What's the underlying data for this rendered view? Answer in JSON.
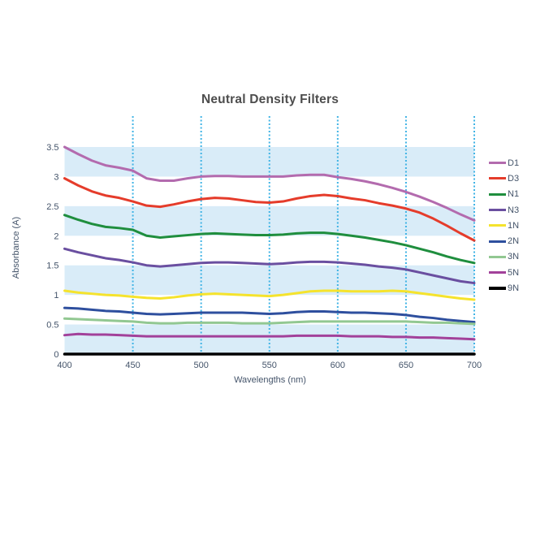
{
  "chart_data": {
    "type": "line",
    "title": "Neutral Density Filters",
    "xlabel": "Wavelengths (nm)",
    "ylabel": "Absorbance (A)",
    "xlim": [
      400,
      700
    ],
    "ylim": [
      0,
      3.5
    ],
    "x_ticks": [
      400,
      450,
      500,
      550,
      600,
      650,
      700
    ],
    "y_tick_labels": [
      "0",
      "0.5",
      "1",
      "1.5",
      "2",
      "2.5",
      "3",
      "3.5"
    ],
    "y_tick_values": [
      0,
      0.5,
      1,
      1.5,
      2,
      2.5,
      3,
      3.5
    ],
    "legend_position": "right",
    "grid": {
      "vertical_gridline_color": "#3fb3e5",
      "vertical_gridline_style": "dotted",
      "band_color": "#d9ecf8",
      "bands": [
        [
          0,
          0.5
        ],
        [
          1,
          1.5
        ],
        [
          2,
          2.5
        ],
        [
          3,
          3.5
        ]
      ]
    },
    "text_color": "#44546a",
    "title_color": "#4d4d4d",
    "x": [
      400,
      410,
      420,
      430,
      440,
      450,
      460,
      470,
      480,
      490,
      500,
      510,
      520,
      530,
      540,
      550,
      560,
      570,
      580,
      590,
      600,
      610,
      620,
      630,
      640,
      650,
      660,
      670,
      680,
      690,
      700
    ],
    "series": [
      {
        "name": "D1",
        "color": "#b36bae",
        "width": 3,
        "values": [
          3.5,
          3.38,
          3.27,
          3.19,
          3.15,
          3.1,
          2.97,
          2.93,
          2.93,
          2.97,
          3.0,
          3.01,
          3.01,
          3.0,
          3.0,
          3.0,
          3.0,
          3.02,
          3.03,
          3.03,
          2.99,
          2.96,
          2.92,
          2.87,
          2.81,
          2.74,
          2.66,
          2.57,
          2.47,
          2.36,
          2.26
        ]
      },
      {
        "name": "D3",
        "color": "#e53c2b",
        "width": 3,
        "values": [
          2.97,
          2.85,
          2.75,
          2.68,
          2.64,
          2.58,
          2.51,
          2.49,
          2.53,
          2.58,
          2.62,
          2.64,
          2.63,
          2.6,
          2.57,
          2.56,
          2.58,
          2.63,
          2.67,
          2.69,
          2.67,
          2.63,
          2.6,
          2.55,
          2.51,
          2.46,
          2.39,
          2.29,
          2.17,
          2.04,
          1.92
        ]
      },
      {
        "name": "N1",
        "color": "#1f8e3e",
        "width": 3,
        "values": [
          2.35,
          2.27,
          2.2,
          2.15,
          2.13,
          2.1,
          2.0,
          1.97,
          1.99,
          2.01,
          2.03,
          2.04,
          2.03,
          2.02,
          2.01,
          2.01,
          2.02,
          2.04,
          2.05,
          2.05,
          2.03,
          2.0,
          1.97,
          1.93,
          1.89,
          1.84,
          1.78,
          1.72,
          1.65,
          1.59,
          1.54
        ]
      },
      {
        "name": "N3",
        "color": "#6a4fa0",
        "width": 3,
        "values": [
          1.78,
          1.72,
          1.67,
          1.62,
          1.59,
          1.55,
          1.5,
          1.48,
          1.5,
          1.52,
          1.54,
          1.55,
          1.55,
          1.54,
          1.53,
          1.52,
          1.53,
          1.55,
          1.56,
          1.56,
          1.55,
          1.53,
          1.51,
          1.48,
          1.46,
          1.43,
          1.38,
          1.33,
          1.28,
          1.23,
          1.2
        ]
      },
      {
        "name": "1N",
        "color": "#f5e32d",
        "width": 3,
        "values": [
          1.07,
          1.04,
          1.02,
          1.0,
          0.99,
          0.97,
          0.95,
          0.94,
          0.96,
          0.99,
          1.01,
          1.02,
          1.01,
          1.0,
          0.99,
          0.98,
          1.0,
          1.03,
          1.06,
          1.07,
          1.07,
          1.06,
          1.06,
          1.06,
          1.07,
          1.06,
          1.03,
          1.0,
          0.97,
          0.94,
          0.92
        ]
      },
      {
        "name": "2N",
        "color": "#2e4f9e",
        "width": 3,
        "values": [
          0.78,
          0.77,
          0.75,
          0.73,
          0.72,
          0.7,
          0.68,
          0.67,
          0.68,
          0.69,
          0.7,
          0.7,
          0.7,
          0.7,
          0.69,
          0.68,
          0.69,
          0.71,
          0.72,
          0.72,
          0.71,
          0.7,
          0.7,
          0.69,
          0.68,
          0.66,
          0.63,
          0.61,
          0.58,
          0.56,
          0.54
        ]
      },
      {
        "name": "3N",
        "color": "#92c892",
        "width": 3,
        "values": [
          0.6,
          0.59,
          0.58,
          0.57,
          0.56,
          0.55,
          0.53,
          0.52,
          0.52,
          0.53,
          0.53,
          0.53,
          0.53,
          0.52,
          0.52,
          0.52,
          0.53,
          0.54,
          0.55,
          0.55,
          0.55,
          0.55,
          0.55,
          0.55,
          0.55,
          0.55,
          0.54,
          0.53,
          0.53,
          0.52,
          0.51
        ]
      },
      {
        "name": "5N",
        "color": "#a2419a",
        "width": 3,
        "values": [
          0.32,
          0.34,
          0.33,
          0.33,
          0.32,
          0.31,
          0.3,
          0.3,
          0.3,
          0.3,
          0.3,
          0.3,
          0.3,
          0.3,
          0.3,
          0.3,
          0.3,
          0.31,
          0.31,
          0.31,
          0.31,
          0.3,
          0.3,
          0.3,
          0.29,
          0.29,
          0.28,
          0.28,
          0.27,
          0.26,
          0.25
        ]
      },
      {
        "name": "9N",
        "color": "#000000",
        "width": 3.5,
        "values": [
          0,
          0,
          0,
          0,
          0,
          0,
          0,
          0,
          0,
          0,
          0,
          0,
          0,
          0,
          0,
          0,
          0,
          0,
          0,
          0,
          0,
          0,
          0,
          0,
          0,
          0,
          0,
          0,
          0,
          0,
          0
        ]
      }
    ]
  }
}
